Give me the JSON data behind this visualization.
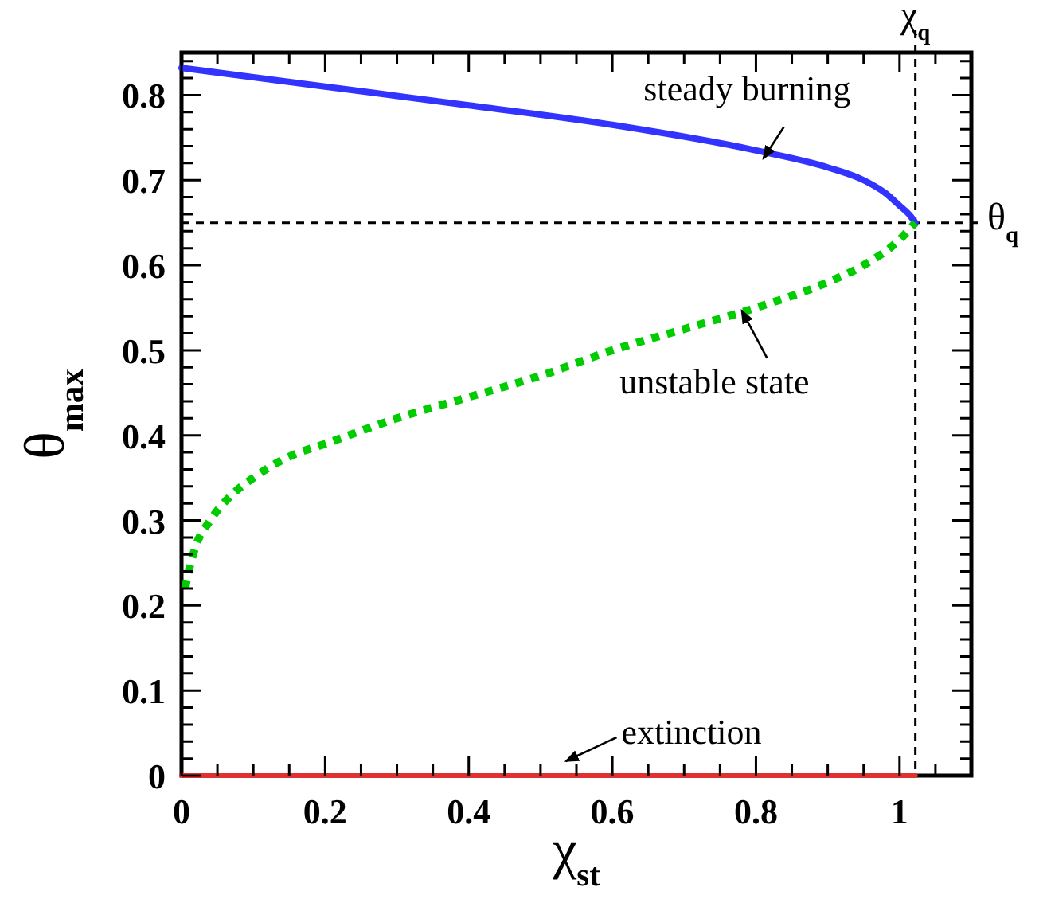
{
  "chart_data": {
    "type": "line",
    "xlabel": "χ$_{st}$",
    "ylabel": "θ$_{max}$",
    "xlim": [
      0,
      1.1
    ],
    "ylim": [
      0,
      0.85
    ],
    "xticks": [
      0,
      0.2,
      0.4,
      0.6,
      0.8,
      1,
      {
        "value": 0.05,
        "label": null
      },
      {
        "value": 0.1,
        "label": null
      },
      {
        "value": 0.15,
        "label": null
      },
      {
        "value": 0.25,
        "label": null
      },
      {
        "value": 0.3,
        "label": null
      },
      {
        "value": 0.35,
        "label": null
      },
      {
        "value": 0.45,
        "label": null
      },
      {
        "value": 0.5,
        "label": null
      },
      {
        "value": 0.55,
        "label": null
      },
      {
        "value": 0.65,
        "label": null
      },
      {
        "value": 0.7,
        "label": null
      },
      {
        "value": 0.75,
        "label": null
      },
      {
        "value": 0.85,
        "label": null
      },
      {
        "value": 0.9,
        "label": null
      },
      {
        "value": 0.95,
        "label": null
      },
      {
        "value": 1.05,
        "label": null
      }
    ],
    "yticks": [
      0,
      0.1,
      0.2,
      0.3,
      0.4,
      0.5,
      0.6,
      0.7,
      0.8,
      {
        "value": 0.02,
        "label": null
      },
      {
        "value": 0.04,
        "label": null
      },
      {
        "value": 0.06,
        "label": null
      },
      {
        "value": 0.08,
        "label": null
      },
      {
        "value": 0.12,
        "label": null
      },
      {
        "value": 0.14,
        "label": null
      },
      {
        "value": 0.16,
        "label": null
      },
      {
        "value": 0.18,
        "label": null
      },
      {
        "value": 0.22,
        "label": null
      },
      {
        "value": 0.24,
        "label": null
      },
      {
        "value": 0.26,
        "label": null
      },
      {
        "value": 0.28,
        "label": null
      },
      {
        "value": 0.32,
        "label": null
      },
      {
        "value": 0.34,
        "label": null
      },
      {
        "value": 0.36,
        "label": null
      },
      {
        "value": 0.38,
        "label": null
      },
      {
        "value": 0.42,
        "label": null
      },
      {
        "value": 0.44,
        "label": null
      },
      {
        "value": 0.46,
        "label": null
      },
      {
        "value": 0.48,
        "label": null
      },
      {
        "value": 0.52,
        "label": null
      },
      {
        "value": 0.54,
        "label": null
      },
      {
        "value": 0.56,
        "label": null
      },
      {
        "value": 0.58,
        "label": null
      },
      {
        "value": 0.62,
        "label": null
      },
      {
        "value": 0.64,
        "label": null
      },
      {
        "value": 0.66,
        "label": null
      },
      {
        "value": 0.68,
        "label": null
      },
      {
        "value": 0.72,
        "label": null
      },
      {
        "value": 0.74,
        "label": null
      },
      {
        "value": 0.76,
        "label": null
      },
      {
        "value": 0.78,
        "label": null
      },
      {
        "value": 0.82,
        "label": null
      },
      {
        "value": 0.84,
        "label": null
      }
    ],
    "series": [
      {
        "color": "#3333ff",
        "line_style": "solid",
        "x": [
          0,
          0.2,
          0.4,
          0.6,
          0.8,
          0.9,
          0.95,
          0.98,
          1.0,
          1.015,
          1.022
        ],
        "values": [
          0.832,
          0.81,
          0.788,
          0.765,
          0.735,
          0.715,
          0.7,
          0.685,
          0.67,
          0.658,
          0.65
        ]
      },
      {
        "color": "#00cc00",
        "line_style": "dotted",
        "x": [
          0.005,
          0.01,
          0.02,
          0.04,
          0.07,
          0.1,
          0.15,
          0.2,
          0.3,
          0.4,
          0.5,
          0.6,
          0.7,
          0.8,
          0.9,
          0.95,
          1.0,
          1.022
        ],
        "values": [
          0.22,
          0.24,
          0.27,
          0.3,
          0.33,
          0.35,
          0.375,
          0.39,
          0.42,
          0.445,
          0.47,
          0.5,
          0.525,
          0.55,
          0.58,
          0.6,
          0.63,
          0.65
        ]
      },
      {
        "color": "#e03030",
        "line_style": "solid",
        "x": [
          0,
          1.022
        ],
        "values": [
          0,
          0
        ]
      }
    ],
    "ref_lines": [
      {
        "axis": "y",
        "value": 0.65,
        "label": "θ$_{q}$",
        "line_style": "dashed"
      },
      {
        "axis": "x",
        "value": 1.022,
        "label": "χ$_{q}$",
        "line_style": "dashed"
      }
    ],
    "annotations": [
      {
        "text": "steady burning",
        "x": 0.81,
        "y": 0.725
      },
      {
        "text": "unstable state",
        "x": 0.78,
        "y": 0.547
      },
      {
        "text": "extinction",
        "x": 0.535,
        "y": 0
      }
    ],
    "grid": false,
    "marker": "none"
  }
}
